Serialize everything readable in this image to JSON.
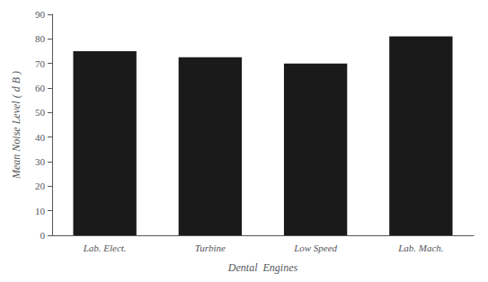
{
  "chart_data": {
    "type": "bar",
    "categories": [
      "Lab. Elect.",
      "Turbine",
      "Low Speed",
      "Lab. Mach."
    ],
    "values": [
      75.0,
      72.5,
      70.0,
      81.0
    ],
    "xlabel": "Dental  Engines",
    "ylabel": "Mean Noise Level ( d B )",
    "ylim": [
      0,
      90
    ],
    "yticks": [
      0,
      10,
      20,
      30,
      40,
      50,
      60,
      70,
      80,
      90
    ],
    "color": "#1a1a1a",
    "grid": false
  }
}
